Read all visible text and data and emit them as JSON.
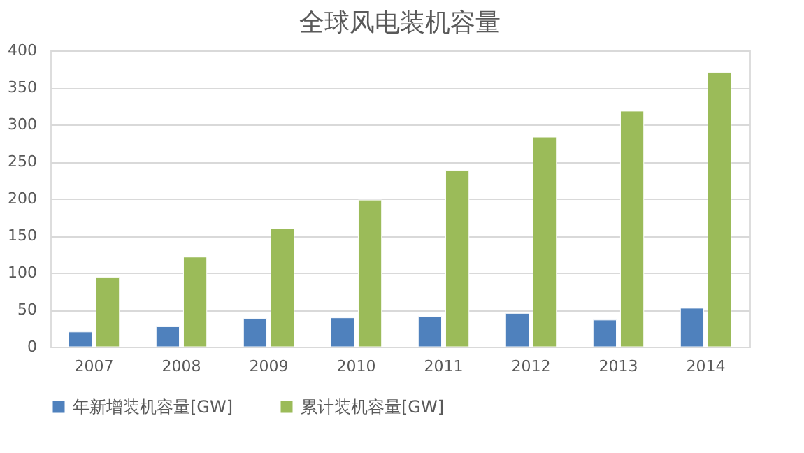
{
  "chart_data": {
    "type": "bar",
    "title": "全球风电装机容量",
    "categories": [
      "2007",
      "2008",
      "2009",
      "2010",
      "2011",
      "2012",
      "2013",
      "2014"
    ],
    "series": [
      {
        "name": "年新增装机容量[GW]",
        "color": "#4f81bd",
        "values": [
          20,
          27,
          38,
          39,
          41,
          45,
          36,
          52
        ]
      },
      {
        "name": "累计装机容量[GW]",
        "color": "#9bbb59",
        "values": [
          94,
          121,
          159,
          198,
          238,
          283,
          318,
          370
        ]
      }
    ],
    "ylim": [
      0,
      400
    ],
    "yticks": [
      0,
      50,
      100,
      150,
      200,
      250,
      300,
      350,
      400
    ],
    "grid": "y",
    "legend": "bottom"
  }
}
